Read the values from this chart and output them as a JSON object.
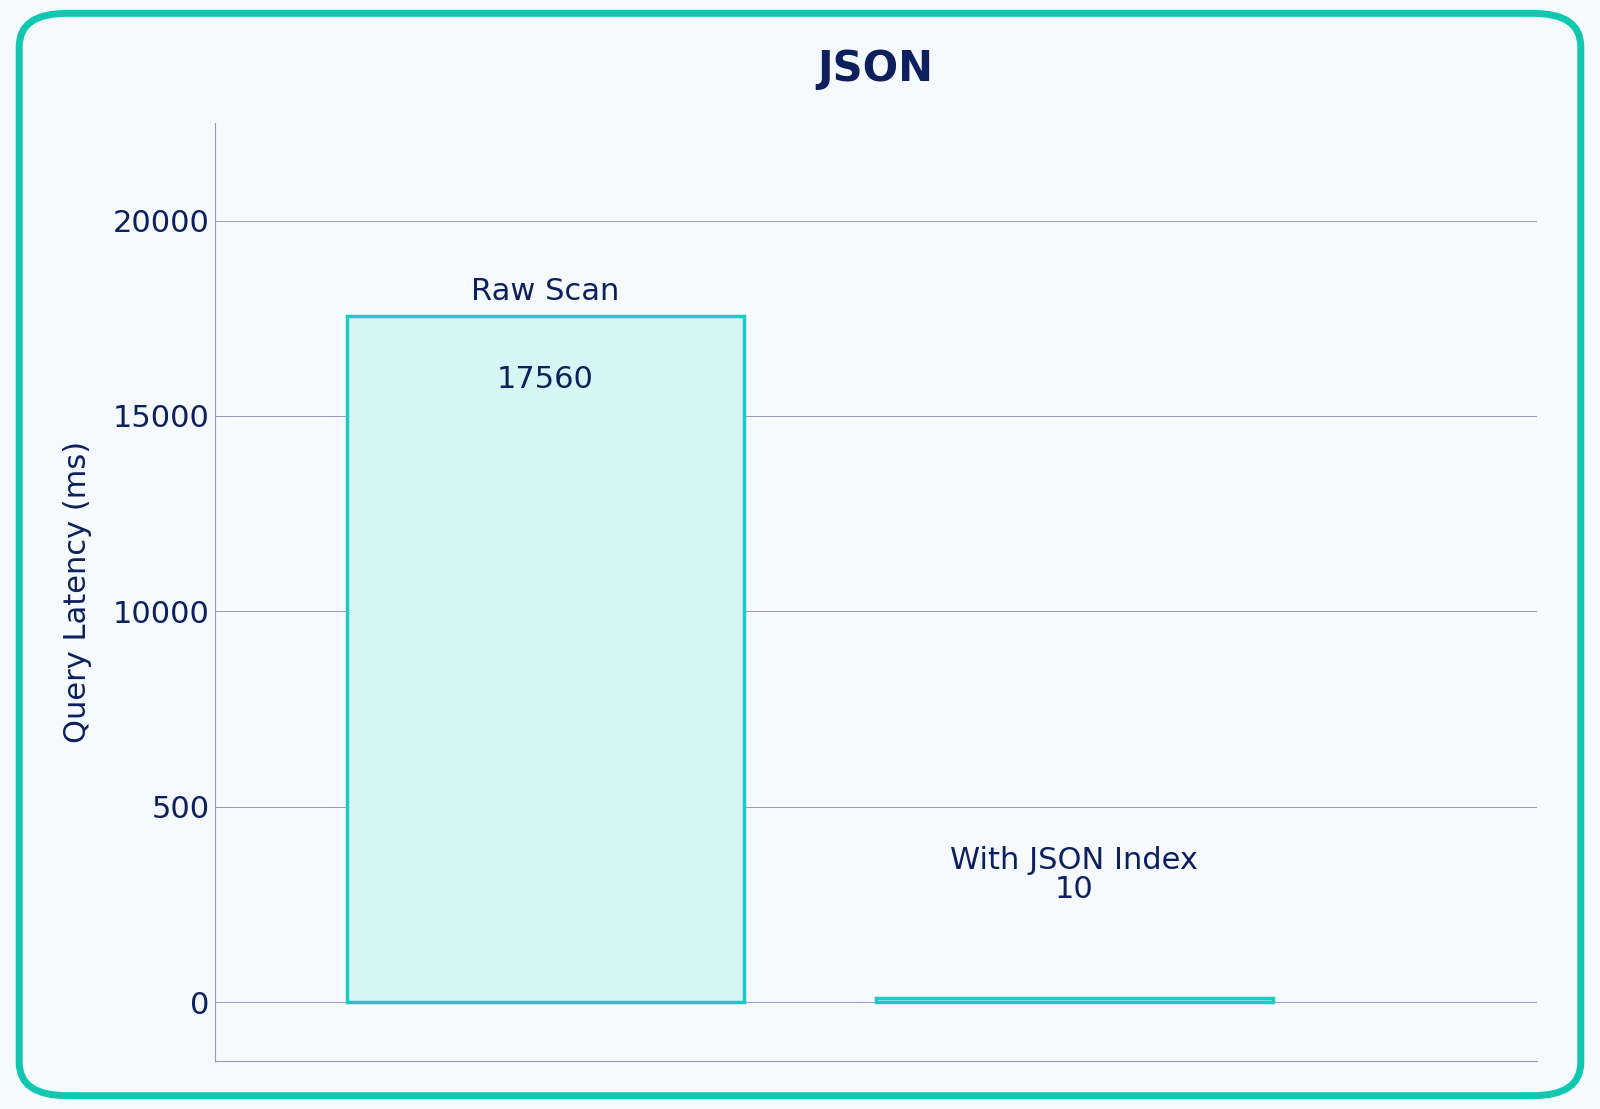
{
  "title": "JSON",
  "ylabel": "Query Latency (ms)",
  "categories": [
    "Raw Scan",
    "With JSON Index"
  ],
  "values": [
    17560,
    10
  ],
  "display_values": [
    17560,
    10
  ],
  "bar_color": "#d6f5f5",
  "bar_edge_color": "#20c8c8",
  "bar_edge_width": 2.5,
  "label_color": "#0d1f5c",
  "title_color": "#0d1f5c",
  "ylabel_color": "#0d1f5c",
  "tick_color": "#0d1f5c",
  "grid_color": "#9999bb",
  "background_color": "#f5faff",
  "border_color": "#10c8b0",
  "ytick_positions": [
    0,
    1,
    2,
    3,
    4
  ],
  "ytick_labels": [
    "0",
    "500",
    "10000",
    "15000",
    "20000"
  ],
  "ytick_real_values": [
    0,
    500,
    10000,
    15000,
    20000
  ],
  "ylim_display": [
    -0.3,
    4.5
  ],
  "title_fontsize": 30,
  "label_fontsize": 22,
  "tick_fontsize": 22,
  "annotation_fontsize": 22,
  "bar_width": 0.3,
  "x_positions": [
    0.3,
    0.7
  ],
  "xlim": [
    0.05,
    1.05
  ]
}
